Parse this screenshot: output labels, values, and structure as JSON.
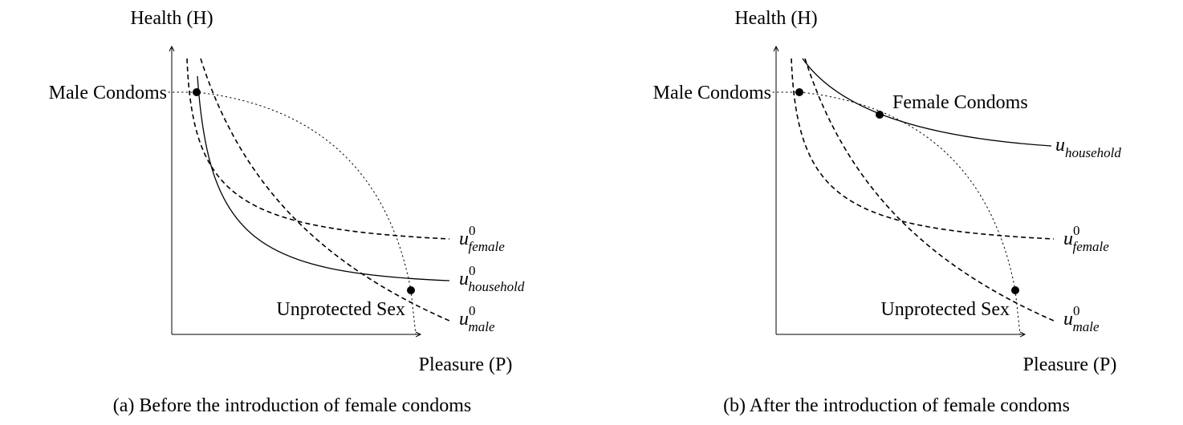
{
  "panels": [
    {
      "y_axis_label": "Health (H)",
      "x_axis_label": "Pleasure (P)",
      "points": [
        "Male Condoms",
        "Unprotected Sex"
      ],
      "curves": [
        {
          "base": "u",
          "sup": "0",
          "sub": "female"
        },
        {
          "base": "u",
          "sup": "0",
          "sub": "household"
        },
        {
          "base": "u",
          "sup": "0",
          "sub": "male"
        }
      ],
      "caption": "(a) Before the introduction of female condoms"
    },
    {
      "y_axis_label": "Health (H)",
      "x_axis_label": "Pleasure (P)",
      "points": [
        "Male Condoms",
        "Female Condoms",
        "Unprotected Sex"
      ],
      "curves": [
        {
          "base": "u",
          "sub": "household"
        },
        {
          "base": "u",
          "sup": "0",
          "sub": "female"
        },
        {
          "base": "u",
          "sup": "0",
          "sub": "male"
        }
      ],
      "caption": "(b) After the introduction of female condoms"
    }
  ]
}
